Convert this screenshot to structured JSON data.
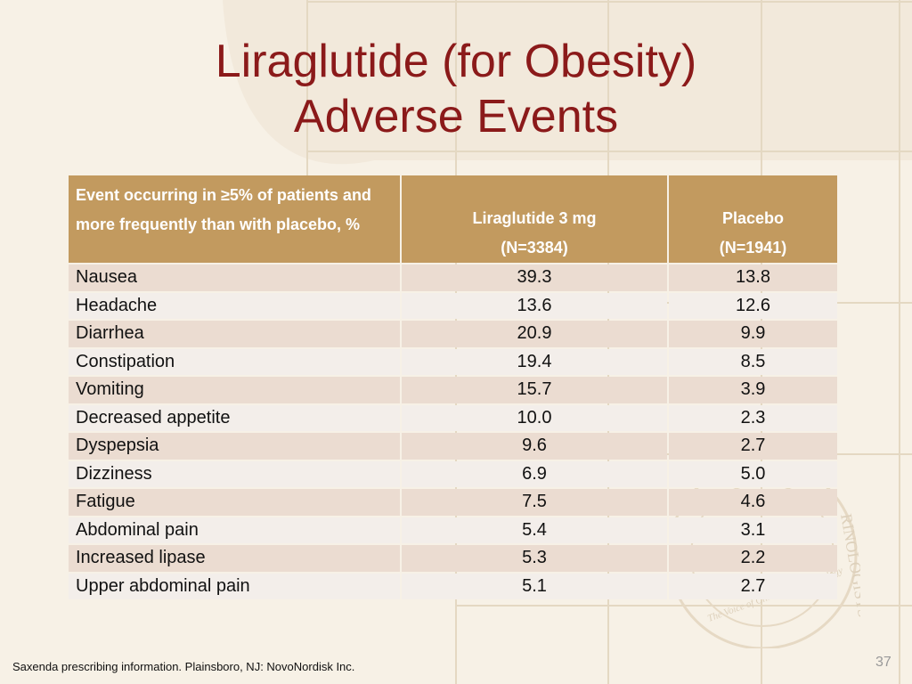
{
  "title": {
    "line1": "Liraglutide (for Obesity)",
    "line2": "Adverse Events"
  },
  "table": {
    "headers": {
      "event": "Event occurring in ≥5% of patients and more frequently than with placebo, %",
      "drug_line1": "Liraglutide 3 mg",
      "drug_line2": "(N=3384)",
      "placebo_line1": "Placebo",
      "placebo_line2": "(N=1941)"
    },
    "rows": [
      {
        "event": "Nausea",
        "liraglutide": "39.3",
        "placebo": "13.8"
      },
      {
        "event": "Headache",
        "liraglutide": "13.6",
        "placebo": "12.6"
      },
      {
        "event": "Diarrhea",
        "liraglutide": "20.9",
        "placebo": "9.9"
      },
      {
        "event": "Constipation",
        "liraglutide": "19.4",
        "placebo": "8.5"
      },
      {
        "event": "Vomiting",
        "liraglutide": "15.7",
        "placebo": "3.9"
      },
      {
        "event": "Decreased appetite",
        "liraglutide": "10.0",
        "placebo": "2.3"
      },
      {
        "event": "Dyspepsia",
        "liraglutide": "9.6",
        "placebo": "2.7"
      },
      {
        "event": "Dizziness",
        "liraglutide": "6.9",
        "placebo": "5.0"
      },
      {
        "event": "Fatigue",
        "liraglutide": "7.5",
        "placebo": "4.6"
      },
      {
        "event": "Abdominal pain",
        "liraglutide": "5.4",
        "placebo": "3.1"
      },
      {
        "event": "Increased lipase",
        "liraglutide": "5.3",
        "placebo": "2.2"
      },
      {
        "event": "Upper abdominal pain",
        "liraglutide": "5.1",
        "placebo": "2.7"
      }
    ]
  },
  "seal": {
    "text_outer": "RINOLOGISTS",
    "text_inner": "The Voice of Clinical Endocrinology"
  },
  "footer": "Saxenda prescribing information. Plainsboro, NJ: NovoNordisk Inc.",
  "page_number": "37",
  "colors": {
    "title": "#8b1a1a",
    "header_bg": "#c29a5f",
    "row_odd": "#ebdcd1",
    "row_even": "#f3eeea",
    "background": "#f7f1e6"
  }
}
